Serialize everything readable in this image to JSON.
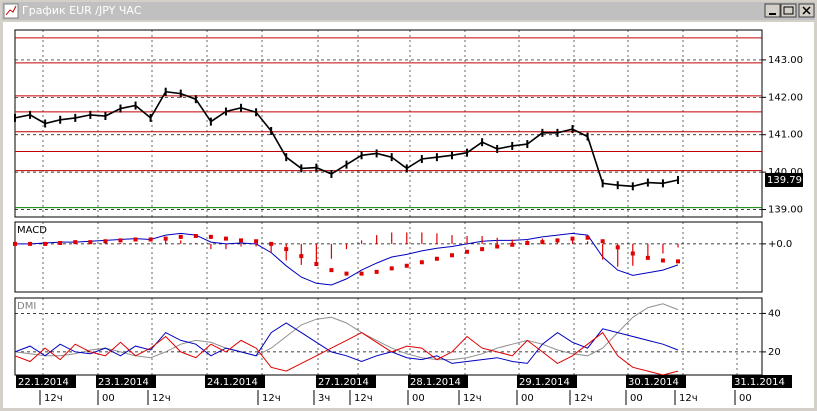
{
  "window_title": "График EUR /JPY ЧАС",
  "chart_data": [
    {
      "type": "line",
      "series": [
        {
          "color": "#000000",
          "values": [
            141.45,
            141.53,
            141.3,
            141.4,
            141.45,
            141.53,
            141.5,
            141.7,
            141.78,
            141.45,
            142.15,
            142.1,
            141.95,
            141.35,
            141.62,
            141.72,
            141.6,
            141.1,
            140.4,
            140.1,
            140.12,
            139.95,
            140.2,
            140.45,
            140.5,
            140.4,
            140.1,
            140.35,
            140.4,
            140.45,
            140.52,
            140.8,
            140.62,
            140.7,
            140.75,
            141.05,
            141.05,
            141.15,
            140.95,
            139.7,
            139.65,
            139.62,
            139.72,
            139.7,
            139.79
          ]
        }
      ],
      "ylim": [
        138.8,
        143.8
      ],
      "yticks": [
        {
          "value": 139,
          "label": "139.00"
        },
        {
          "value": 140,
          "label": "140.00"
        },
        {
          "value": 141,
          "label": "141.00"
        },
        {
          "value": 142,
          "label": "142.00"
        },
        {
          "value": 143,
          "label": "143.00"
        }
      ],
      "grid": true,
      "levels": [
        {
          "value": 143.59,
          "color": "#c00000"
        },
        {
          "value": 142.92,
          "color": "#c00000"
        },
        {
          "value": 142.04,
          "color": "#c00000"
        },
        {
          "value": 141.61,
          "color": "#c00000"
        },
        {
          "value": 141.08,
          "color": "#c00000"
        },
        {
          "value": 140.55,
          "color": "#c00000"
        },
        {
          "value": 140.04,
          "color": "#c00000"
        },
        {
          "value": 139.05,
          "color": "#008000"
        }
      ],
      "last_price": {
        "value": 139.79,
        "label": "139.79"
      }
    },
    {
      "type": "line",
      "title": "MACD",
      "series": [
        {
          "color": "#0000c0",
          "style": "line",
          "values": [
            0,
            0,
            0.01,
            0.02,
            0.02,
            0.03,
            0.04,
            0.05,
            0.06,
            0.05,
            0.1,
            0.12,
            0.1,
            0.02,
            0,
            0.01,
            0,
            -0.1,
            -0.25,
            -0.38,
            -0.45,
            -0.47,
            -0.4,
            -0.3,
            -0.22,
            -0.15,
            -0.12,
            -0.08,
            -0.05,
            -0.03,
            0,
            0.03,
            0.04,
            0.04,
            0.05,
            0.08,
            0.1,
            0.12,
            0.1,
            -0.15,
            -0.3,
            -0.36,
            -0.33,
            -0.3,
            -0.24
          ]
        },
        {
          "color": "#e00000",
          "style": "dots",
          "values": [
            0,
            0,
            0,
            0.01,
            0.02,
            0.02,
            0.03,
            0.04,
            0.05,
            0.05,
            0.06,
            0.08,
            0.09,
            0.08,
            0.06,
            0.04,
            0.03,
            0,
            -0.06,
            -0.14,
            -0.23,
            -0.3,
            -0.34,
            -0.34,
            -0.32,
            -0.28,
            -0.25,
            -0.21,
            -0.17,
            -0.13,
            -0.09,
            -0.06,
            -0.03,
            -0.01,
            0.01,
            0.02,
            0.04,
            0.06,
            0.07,
            0.03,
            -0.04,
            -0.11,
            -0.16,
            -0.19,
            -0.2
          ]
        },
        {
          "color": "#e00000",
          "style": "histogram",
          "values": [
            0,
            0,
            0.01,
            0.01,
            0,
            0.01,
            0.01,
            0.01,
            0.01,
            0,
            0.04,
            0.04,
            0.01,
            -0.06,
            -0.06,
            -0.03,
            -0.03,
            -0.1,
            -0.19,
            -0.24,
            -0.22,
            -0.17,
            -0.06,
            0.04,
            0.1,
            0.13,
            0.13,
            0.13,
            0.12,
            0.1,
            0.09,
            0.09,
            0.07,
            0.05,
            0.04,
            0.06,
            0.06,
            0.06,
            0.03,
            -0.18,
            -0.26,
            -0.25,
            -0.17,
            -0.11,
            -0.04
          ]
        }
      ],
      "ylim": [
        -0.55,
        0.25
      ],
      "yticks": [
        {
          "value": 0,
          "label": "+0.0"
        }
      ]
    },
    {
      "type": "line",
      "title": "DMI",
      "series": [
        {
          "color": "#909090",
          "style": "line",
          "values": [
            20,
            19,
            18,
            18,
            19,
            21,
            22,
            20,
            18,
            17,
            20,
            24,
            26,
            25,
            22,
            20,
            18,
            22,
            28,
            34,
            37,
            38,
            35,
            30,
            26,
            22,
            19,
            17,
            16,
            16,
            17,
            19,
            22,
            24,
            26,
            24,
            21,
            19,
            18,
            22,
            30,
            38,
            43,
            45,
            42
          ]
        },
        {
          "color": "#0000c0",
          "style": "line",
          "values": [
            20,
            23,
            18,
            24,
            20,
            19,
            22,
            18,
            23,
            21,
            30,
            26,
            24,
            18,
            22,
            20,
            18,
            30,
            35,
            30,
            25,
            20,
            18,
            15,
            18,
            20,
            17,
            16,
            18,
            14,
            15,
            16,
            17,
            15,
            14,
            24,
            30,
            25,
            22,
            32,
            30,
            28,
            26,
            24,
            21
          ]
        },
        {
          "color": "#e00000",
          "style": "line",
          "values": [
            18,
            15,
            22,
            16,
            24,
            20,
            18,
            25,
            18,
            22,
            28,
            20,
            17,
            24,
            20,
            26,
            22,
            12,
            10,
            14,
            18,
            22,
            26,
            30,
            25,
            20,
            23,
            22,
            16,
            20,
            28,
            22,
            20,
            18,
            26,
            20,
            14,
            18,
            24,
            30,
            18,
            12,
            10,
            8,
            10
          ]
        }
      ],
      "ylim": [
        8,
        48
      ],
      "yticks": [
        20,
        40
      ]
    }
  ],
  "time_axis": {
    "dates": [
      "22.1.2014",
      "23.1.2014",
      "24.1.2014",
      "27.1.2014",
      "28.1.2014",
      "29.1.2014",
      "30.1.2014",
      "31.1.2014"
    ],
    "hours": [
      "12ч",
      "00",
      "12ч",
      "12ч",
      "3ч",
      "12ч",
      "00",
      "12ч",
      "00",
      "12ч",
      "00",
      "12ч",
      "00"
    ]
  }
}
